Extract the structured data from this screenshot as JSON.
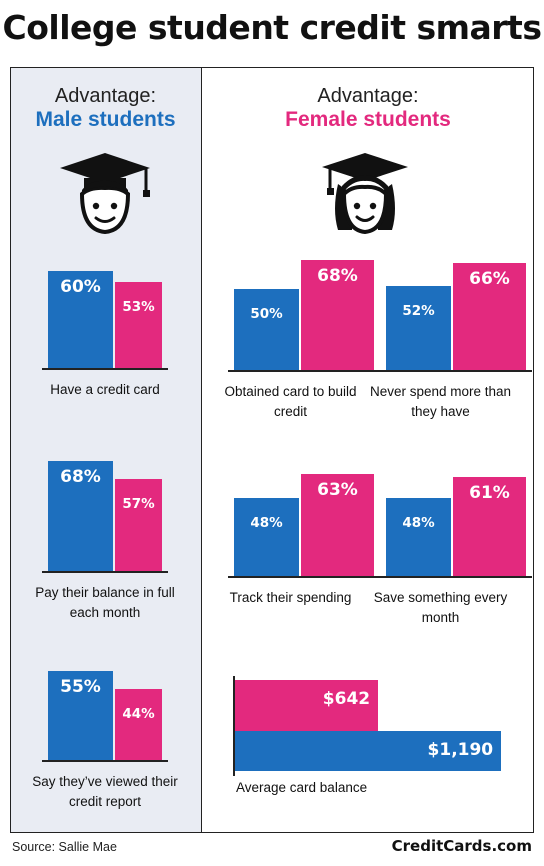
{
  "title": "College student credit smarts",
  "colors": {
    "male": "#1d6fbe",
    "female": "#e3297e"
  },
  "male_panel": {
    "advantage_label": "Advantage:",
    "group_label": "Male students",
    "icon": "male-graduate-icon"
  },
  "female_panel": {
    "advantage_label": "Advantage:",
    "group_label": "Female students",
    "icon": "female-graduate-icon"
  },
  "chart_data": [
    {
      "type": "bar",
      "panel": "male",
      "category": "Have a credit card",
      "series": [
        {
          "values": [
            60
          ],
          "label": "60%"
        },
        {
          "values": [
            53
          ],
          "label": "53%"
        }
      ]
    },
    {
      "type": "bar",
      "panel": "male",
      "category": "Pay their balance in full each month",
      "series": [
        {
          "values": [
            68
          ],
          "label": "68%"
        },
        {
          "values": [
            57
          ],
          "label": "57%"
        }
      ]
    },
    {
      "type": "bar",
      "panel": "male",
      "category": "Say they’ve viewed their credit report",
      "series": [
        {
          "values": [
            55
          ],
          "label": "55%"
        },
        {
          "values": [
            44
          ],
          "label": "44%"
        }
      ]
    },
    {
      "type": "bar",
      "panel": "female",
      "category": "Obtained card to build credit",
      "series": [
        {
          "values": [
            50
          ],
          "label": "50%"
        },
        {
          "values": [
            68
          ],
          "label": "68%"
        }
      ]
    },
    {
      "type": "bar",
      "panel": "female",
      "category": "Never spend more than they have",
      "series": [
        {
          "values": [
            52
          ],
          "label": "52%"
        },
        {
          "values": [
            66
          ],
          "label": "66%"
        }
      ]
    },
    {
      "type": "bar",
      "panel": "female",
      "category": "Track their spending",
      "series": [
        {
          "values": [
            48
          ],
          "label": "48%"
        },
        {
          "values": [
            63
          ],
          "label": "63%"
        }
      ]
    },
    {
      "type": "bar",
      "panel": "female",
      "category": "Save something every month",
      "series": [
        {
          "values": [
            48
          ],
          "label": "48%"
        },
        {
          "values": [
            61
          ],
          "label": "61%"
        }
      ]
    },
    {
      "type": "bar",
      "orientation": "horizontal",
      "panel": "female",
      "category": "Average card balance",
      "series": [
        {
          "values": [
            642
          ],
          "label": "$642"
        },
        {
          "values": [
            1190
          ],
          "label": "$1,190"
        }
      ]
    }
  ],
  "footer": {
    "source": "Source: Sallie Mae",
    "brand": "CreditCards.com"
  }
}
